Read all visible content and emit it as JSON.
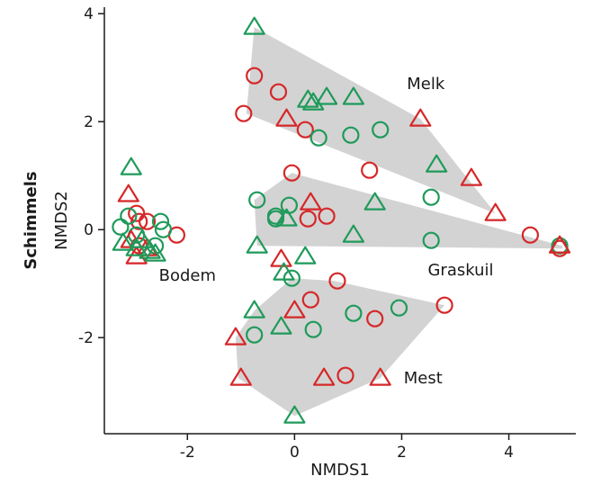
{
  "chart_data": {
    "type": "scatter",
    "title": "",
    "panel_label": "Schimmels",
    "xlabel": "NMDS1",
    "ylabel": "NMDS2",
    "xlim": [
      -3.55,
      5.25
    ],
    "ylim": [
      -3.78,
      4.12
    ],
    "xticks": [
      -2,
      0,
      2,
      4
    ],
    "yticks": [
      -2,
      0,
      2,
      4
    ],
    "colors": {
      "red": "#d62728",
      "green": "#1f9a5a",
      "hull": "#d3d3d3"
    },
    "groups": [
      {
        "name": "Bodem",
        "label_pos": [
          -2.0,
          -0.95
        ]
      },
      {
        "name": "Melk",
        "label_pos": [
          2.45,
          2.6
        ]
      },
      {
        "name": "Graskuil",
        "label_pos": [
          3.1,
          -0.85
        ]
      },
      {
        "name": "Mest",
        "label_pos": [
          2.4,
          -2.85
        ]
      }
    ],
    "hulls": [
      {
        "group": "Melk",
        "points": [
          [
            -0.75,
            3.75
          ],
          [
            2.35,
            2.05
          ],
          [
            3.75,
            0.3
          ],
          [
            -0.9,
            2.15
          ]
        ]
      },
      {
        "group": "Graskuil",
        "points": [
          [
            -0.05,
            1.05
          ],
          [
            5.0,
            -0.3
          ],
          [
            5.0,
            -0.35
          ],
          [
            -0.7,
            -0.3
          ],
          [
            -0.75,
            0.55
          ]
        ]
      },
      {
        "group": "Mest",
        "points": [
          [
            -0.05,
            -0.9
          ],
          [
            0.75,
            -0.95
          ],
          [
            2.8,
            -1.4
          ],
          [
            1.6,
            -2.75
          ],
          [
            0.0,
            -3.45
          ],
          [
            -1.05,
            -2.75
          ],
          [
            -1.1,
            -2.0
          ],
          [
            -0.75,
            -1.5
          ]
        ]
      }
    ],
    "series": [
      {
        "marker": "circle",
        "color": "red",
        "points": [
          [
            -2.95,
            0.3
          ],
          [
            -2.9,
            0.15
          ],
          [
            -2.75,
            0.15
          ],
          [
            -2.2,
            -0.1
          ],
          [
            -2.9,
            -0.3
          ],
          [
            -0.75,
            2.85
          ],
          [
            -0.3,
            2.55
          ],
          [
            -0.95,
            2.15
          ],
          [
            0.2,
            1.85
          ],
          [
            1.4,
            1.1
          ],
          [
            -0.05,
            1.05
          ],
          [
            0.25,
            0.2
          ],
          [
            0.6,
            0.25
          ],
          [
            4.4,
            -0.1
          ],
          [
            4.95,
            -0.35
          ],
          [
            0.3,
            -1.3
          ],
          [
            0.8,
            -0.95
          ],
          [
            1.5,
            -1.65
          ],
          [
            2.8,
            -1.4
          ],
          [
            0.95,
            -2.7
          ]
        ]
      },
      {
        "marker": "circle",
        "color": "green",
        "points": [
          [
            -3.25,
            0.05
          ],
          [
            -3.1,
            0.25
          ],
          [
            -2.5,
            0.15
          ],
          [
            -2.45,
            0.0
          ],
          [
            -2.95,
            -0.1
          ],
          [
            -2.6,
            -0.3
          ],
          [
            0.45,
            1.7
          ],
          [
            1.05,
            1.75
          ],
          [
            1.6,
            1.85
          ],
          [
            2.55,
            0.6
          ],
          [
            -0.7,
            0.55
          ],
          [
            -0.1,
            0.45
          ],
          [
            -0.35,
            0.2
          ],
          [
            -0.35,
            0.25
          ],
          [
            2.55,
            -0.2
          ],
          [
            -0.05,
            -0.9
          ],
          [
            1.95,
            -1.45
          ],
          [
            1.1,
            -1.55
          ],
          [
            0.35,
            -1.85
          ],
          [
            -0.75,
            -1.95
          ],
          [
            4.95,
            -0.3
          ]
        ]
      },
      {
        "marker": "triangle",
        "color": "red",
        "points": [
          [
            -3.1,
            0.65
          ],
          [
            -3.05,
            -0.2
          ],
          [
            -2.75,
            -0.35
          ],
          [
            -2.95,
            -0.5
          ],
          [
            -0.15,
            2.05
          ],
          [
            2.35,
            2.05
          ],
          [
            3.3,
            0.95
          ],
          [
            3.75,
            0.3
          ],
          [
            0.3,
            0.5
          ],
          [
            -0.25,
            -0.55
          ],
          [
            4.95,
            -0.3
          ],
          [
            0.0,
            -1.5
          ],
          [
            -1.1,
            -2.0
          ],
          [
            -1.0,
            -2.75
          ],
          [
            0.55,
            -2.75
          ],
          [
            1.6,
            -2.75
          ]
        ]
      },
      {
        "marker": "triangle",
        "color": "green",
        "points": [
          [
            -3.05,
            1.15
          ],
          [
            -3.2,
            -0.25
          ],
          [
            -2.95,
            -0.35
          ],
          [
            -2.7,
            -0.4
          ],
          [
            -2.85,
            -0.2
          ],
          [
            -2.6,
            -0.45
          ],
          [
            -0.75,
            3.75
          ],
          [
            0.25,
            2.4
          ],
          [
            0.35,
            2.35
          ],
          [
            0.6,
            2.45
          ],
          [
            1.1,
            2.45
          ],
          [
            2.65,
            1.2
          ],
          [
            1.5,
            0.5
          ],
          [
            -0.15,
            0.2
          ],
          [
            -0.7,
            -0.3
          ],
          [
            0.2,
            -0.5
          ],
          [
            -0.2,
            -0.8
          ],
          [
            1.1,
            -0.1
          ],
          [
            -0.75,
            -1.5
          ],
          [
            -0.25,
            -1.8
          ],
          [
            0.0,
            -3.45
          ]
        ]
      }
    ]
  }
}
